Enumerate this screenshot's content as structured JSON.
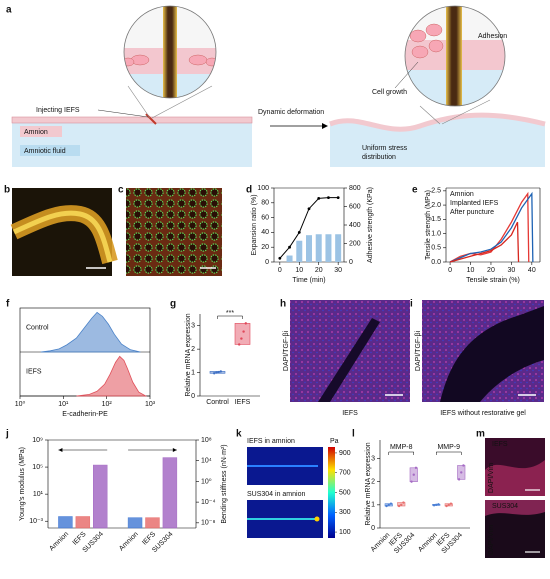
{
  "panel_labels": [
    "a",
    "b",
    "c",
    "d",
    "e",
    "f",
    "g",
    "h",
    "i",
    "j",
    "k",
    "l",
    "m"
  ],
  "schematic": {
    "injecting": "Injecting IEFS",
    "amnion": "Amnion",
    "fluid": "Amniotic fluid",
    "deformation": "Dynamic deformation",
    "adhesion": "Adhesion",
    "cell_growth": "Cell growth",
    "stress": [
      "Uniform stress",
      "distribution"
    ]
  },
  "micrographs": {
    "h": {
      "stain": "DAPI/TGF-βi",
      "caption": "IEFS"
    },
    "i": {
      "stain": "DAPI/TGF-βi",
      "caption": "IEFS without restorative gel"
    },
    "m": [
      {
        "label": "IEFS",
        "stain": "DAPI/Vim"
      },
      {
        "label": "SUS304",
        "stain": "DAPI/Vim"
      }
    ]
  },
  "simulation": {
    "titles": [
      "IEFS in amnion",
      "SUS304 in amnion"
    ],
    "colorbar": {
      "label": "Pa",
      "ylim": [
        40,
        960
      ],
      "yticks": [
        900,
        700,
        500,
        300,
        100
      ]
    }
  },
  "chart_data": [
    {
      "type": "combo",
      "xlabel": "Time (min)",
      "ylabel": "Expansion ratio (%)",
      "y2label": "Adhesive strength (KPa)",
      "xlim": [
        -3,
        33
      ],
      "xticks": [
        0,
        10,
        20,
        30
      ],
      "ylim": [
        0,
        100
      ],
      "yticks": [
        0,
        20,
        40,
        60,
        80,
        100
      ],
      "y2lim": [
        0,
        800
      ],
      "y2ticks": [
        0,
        200,
        400,
        600,
        800
      ],
      "series": [
        {
          "mark": "bar",
          "axis": "y2",
          "color": "#9cc3e4",
          "x": [
            5,
            10,
            15,
            20,
            25,
            30
          ],
          "values": [
            70,
            230,
            290,
            300,
            300,
            300
          ]
        },
        {
          "mark": "line",
          "color": "#000000",
          "x": [
            0,
            5,
            10,
            15,
            20,
            25,
            30
          ],
          "values": [
            5,
            20,
            40,
            72,
            86,
            87,
            87
          ]
        }
      ]
    },
    {
      "type": "line",
      "xlabel": "Tensile strain (%)",
      "ylabel": "Tensile strength (MPa)",
      "legend": "upper left",
      "xlim": [
        -2,
        44
      ],
      "xticks": [
        0,
        10,
        20,
        30,
        40
      ],
      "ylim": [
        0,
        2.6
      ],
      "yticks": [
        {
          "value": 0,
          "label": "0.0"
        },
        0.5,
        {
          "value": 1,
          "label": "1.0"
        },
        1.5,
        {
          "value": 2,
          "label": "2.0"
        },
        2.5
      ],
      "series": [
        {
          "name": "Amnion",
          "color": "#e53935",
          "x": [
            0,
            5,
            10,
            15,
            20,
            25,
            30,
            35,
            38,
            38.5
          ],
          "values": [
            0,
            0.2,
            0.3,
            0.25,
            0.35,
            0.8,
            1.4,
            2.1,
            2.4,
            0
          ]
        },
        {
          "name": "Implanted IEFS",
          "color": "#1e63b4",
          "x": [
            0,
            5,
            10,
            15,
            20,
            25,
            30,
            35,
            40,
            40.5
          ],
          "values": [
            0,
            0.15,
            0.3,
            0.35,
            0.45,
            0.7,
            1.2,
            1.9,
            2.4,
            0
          ]
        },
        {
          "name": "After puncture",
          "color": "#d7261e",
          "x": [
            0,
            5,
            10,
            15,
            20,
            25,
            30,
            33,
            33.5
          ],
          "values": [
            0,
            0.1,
            0.2,
            0.3,
            0.4,
            0.6,
            0.95,
            1.4,
            0
          ]
        }
      ]
    },
    {
      "type": "area",
      "xlabel": "E-cadherin-PE",
      "xlog": true,
      "xlim": [
        1,
        1000
      ],
      "xticks": [
        {
          "value": 1,
          "label": "10⁰"
        },
        {
          "value": 10,
          "label": "10¹"
        },
        {
          "value": 100,
          "label": "10²"
        },
        {
          "value": 1000,
          "label": "10³"
        }
      ],
      "series": [
        {
          "name": "Control",
          "color": "#4a82c8",
          "x": [
            3,
            5,
            8,
            12,
            20,
            30,
            45,
            60,
            80,
            110,
            150,
            220,
            350,
            600
          ],
          "values": [
            0,
            0.03,
            0.08,
            0.18,
            0.35,
            0.6,
            0.85,
            1,
            0.9,
            0.7,
            0.45,
            0.2,
            0.06,
            0
          ]
        },
        {
          "name": "IEFS",
          "color": "#e0505a",
          "x": [
            20,
            40,
            60,
            90,
            120,
            160,
            200,
            250,
            300,
            400,
            550,
            800
          ],
          "values": [
            0,
            0.04,
            0.12,
            0.3,
            0.55,
            0.85,
            1,
            0.9,
            0.7,
            0.35,
            0.1,
            0
          ]
        }
      ]
    },
    {
      "type": "box",
      "ylabel": "Relative mRNA expression",
      "ylim": [
        0,
        3.5
      ],
      "yticks": [
        0,
        1,
        2,
        3
      ],
      "categories": [
        "Control",
        "IEFS"
      ],
      "colors": [
        "#3d6fc4",
        "#e0485a"
      ],
      "annotation": "***",
      "groups": [
        {
          "values": [
            [
              0.97,
              1.0,
              1.02,
              1.05
            ],
            [
              2.2,
              2.45,
              2.75,
              3.1
            ]
          ]
        }
      ]
    },
    {
      "type": "bar",
      "ylog": true,
      "ylabel": "Young's modulus (MPa)",
      "y2label": "Bending stiffness (nN·m²)",
      "ylim": [
        0.0001,
        1000000000
      ],
      "yticks": [
        {
          "value": 1000000000,
          "label": "10⁹"
        },
        {
          "value": 100000,
          "label": "10⁵"
        },
        {
          "value": 10,
          "label": "10¹"
        },
        {
          "value": 0.001,
          "label": "10⁻³"
        }
      ],
      "y2lim": [
        1e-09,
        100000000
      ],
      "y2ticks": [
        {
          "value": 100000000,
          "label": "10⁸"
        },
        {
          "value": 10000,
          "label": "10⁴"
        },
        {
          "value": 1,
          "label": "10⁰"
        },
        {
          "value": 0.0001,
          "label": "10⁻⁴"
        },
        {
          "value": 1e-08,
          "label": "10⁻⁸"
        }
      ],
      "categories": [
        "Amnion",
        "IEFS",
        "SUS304"
      ],
      "colors": [
        "#4a7fd6",
        "#e8706e",
        "#a56bc4"
      ],
      "series": [
        {
          "values": [
            0.005,
            0.005,
            200000
          ]
        },
        {
          "axis": "y2",
          "values": [
            1e-07,
            1e-07,
            40000
          ]
        }
      ]
    },
    {
      "type": "box",
      "ylabel": "Relative mRNA expression",
      "ylim": [
        0,
        3.8
      ],
      "yticks": [
        0,
        1,
        2,
        3
      ],
      "label_rotation": 45,
      "categories": [
        "Amnion",
        "IEFS",
        "SUS304"
      ],
      "colors": [
        "#4a7fd6",
        "#e8706e",
        "#a56bc4"
      ],
      "groups": [
        {
          "name": "MMP-8",
          "values": [
            [
              0.95,
              1.0,
              1.05
            ],
            [
              0.95,
              1.0,
              1.1
            ],
            [
              2.0,
              2.3,
              2.6
            ]
          ]
        },
        {
          "name": "MMP-9",
          "values": [
            [
              0.98,
              1.0,
              1.02
            ],
            [
              0.95,
              1.0,
              1.05
            ],
            [
              2.1,
              2.4,
              2.7
            ]
          ]
        }
      ]
    }
  ]
}
